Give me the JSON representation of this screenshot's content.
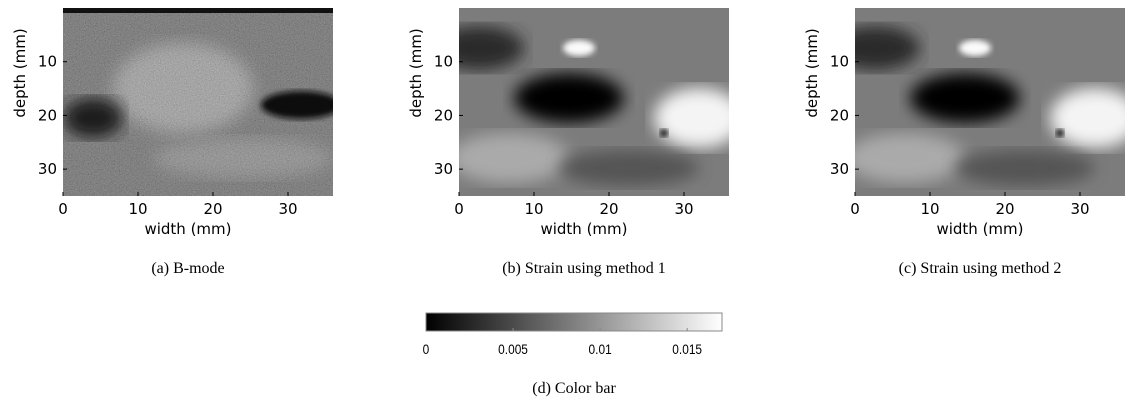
{
  "panels": [
    {
      "caption": "(a) B-mode",
      "x_label": "width (mm)",
      "y_label": "depth (mm)",
      "xticks": [
        0,
        10,
        20,
        30
      ],
      "yticks": [
        10,
        20,
        30
      ],
      "xlim": [
        0,
        36
      ],
      "ylim": [
        0,
        35
      ]
    },
    {
      "caption": "(b) Strain using method 1",
      "x_label": "width (mm)",
      "y_label": "depth (mm)",
      "xticks": [
        0,
        10,
        20,
        30
      ],
      "yticks": [
        10,
        20,
        30
      ],
      "xlim": [
        0,
        36
      ],
      "ylim": [
        0,
        35
      ]
    },
    {
      "caption": "(c) Strain using method 2",
      "x_label": "width (mm)",
      "y_label": "depth (mm)",
      "xticks": [
        0,
        10,
        20,
        30
      ],
      "yticks": [
        10,
        20,
        30
      ],
      "xlim": [
        0,
        36
      ],
      "ylim": [
        0,
        35
      ]
    }
  ],
  "colorbar": {
    "caption": "(d) Color bar",
    "ticks": [
      0,
      0.005,
      0.01,
      0.015
    ],
    "lim": [
      0,
      0.017
    ]
  }
}
